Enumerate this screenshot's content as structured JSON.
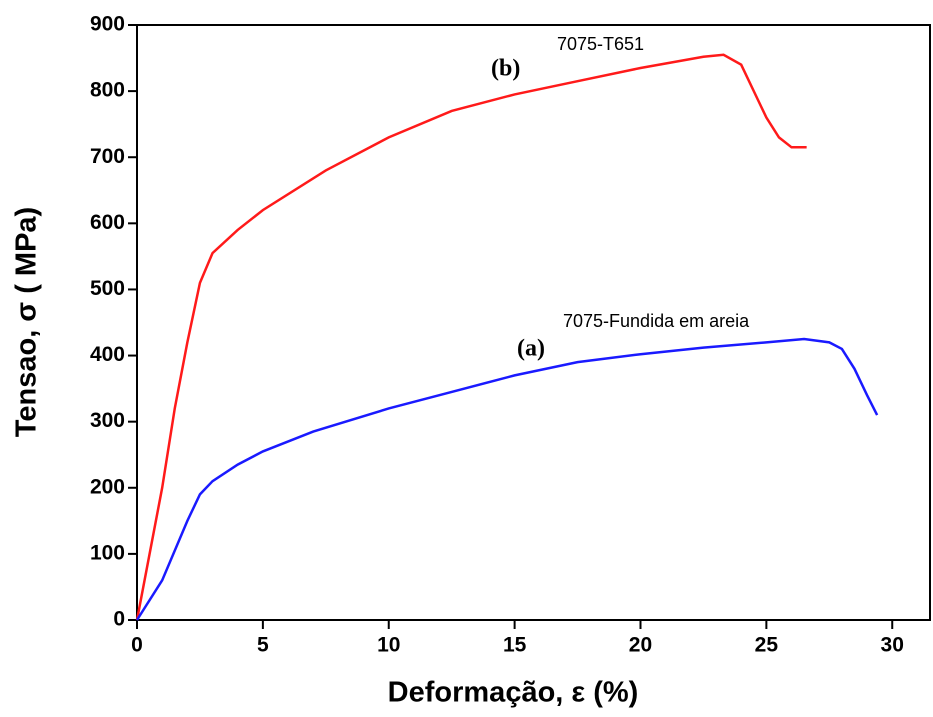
{
  "chart_data": {
    "type": "line",
    "xlabel": "Deformação, ε (%)",
    "ylabel": "Tensao, σ ( MPa)",
    "xlim": [
      0,
      31.5
    ],
    "xticks": [
      0,
      5,
      10,
      15,
      20,
      25,
      30
    ],
    "ylim": [
      0,
      900
    ],
    "yticks": [
      0,
      100,
      200,
      300,
      400,
      500,
      600,
      700,
      800,
      900
    ],
    "annotations": [
      "(b)",
      "(a)"
    ],
    "series": [
      {
        "name": "7075-T651",
        "color": "#ff1a1a",
        "x": [
          0,
          0.5,
          1,
          1.5,
          2,
          2.5,
          3,
          4,
          5,
          7.5,
          10,
          12.5,
          15,
          17.5,
          20,
          22.5,
          23.3,
          24,
          24.5,
          25,
          25.5,
          26,
          26.6
        ],
        "values": [
          0,
          100,
          200,
          320,
          420,
          510,
          555,
          590,
          620,
          680,
          730,
          770,
          795,
          815,
          835,
          852,
          855,
          840,
          800,
          760,
          730,
          715,
          715
        ]
      },
      {
        "name": "7075-Fundida em areia",
        "color": "#1a1aff",
        "x": [
          0,
          1,
          2,
          2.5,
          3,
          4,
          5,
          7,
          10,
          12.5,
          15,
          17.5,
          20,
          22.5,
          25,
          26.5,
          27.5,
          28,
          28.5,
          29,
          29.4
        ],
        "values": [
          0,
          60,
          150,
          190,
          210,
          235,
          255,
          285,
          320,
          345,
          370,
          390,
          402,
          412,
          420,
          425,
          420,
          410,
          380,
          340,
          310
        ]
      }
    ]
  }
}
